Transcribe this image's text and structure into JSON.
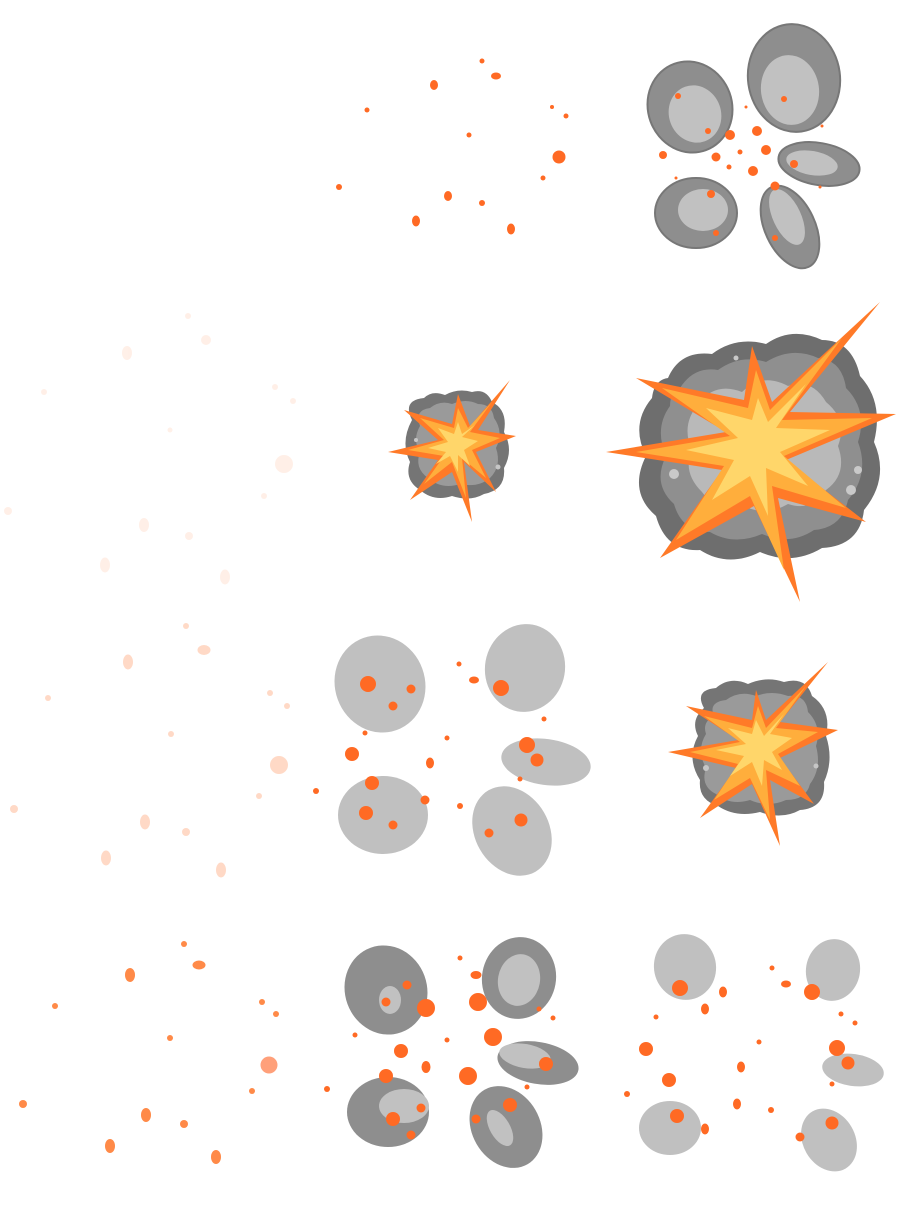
{
  "sprite_sheet": {
    "colors": {
      "spark": "#ff6a24",
      "smoke_dark": "#8c8c8c",
      "smoke_mid": "#9a9a9a",
      "smoke_light": "#c0c0c0",
      "flash_outer": "#ff7a28",
      "flash_mid": "#ffae3c",
      "flash_core": "#ffd66a"
    },
    "frames": [
      {
        "name": "debris-scatter",
        "icon": "explosion-debris"
      },
      {
        "name": "small-blast",
        "icon": "explosion-small"
      },
      {
        "name": "big-blast",
        "icon": "explosion-large"
      },
      {
        "name": "fading-smoke",
        "icon": "smoke-puffs-faded"
      },
      {
        "name": "medium-blast",
        "icon": "explosion-medium"
      },
      {
        "name": "smoke-burst",
        "icon": "smoke-puffs-dark"
      },
      {
        "name": "smoke-dissipate",
        "icon": "smoke-puffs-light"
      }
    ]
  }
}
